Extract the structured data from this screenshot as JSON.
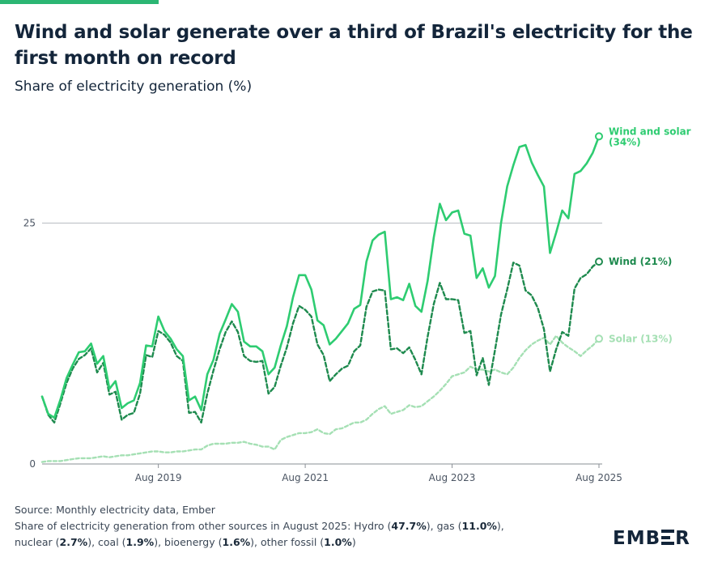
{
  "header": {
    "title": "Wind and solar generate over a third of Brazil's electricity for the first month on record",
    "subtitle": "Share of electricity generation (%)"
  },
  "colors": {
    "wind_and_solar": "#2ecc71",
    "wind": "#1e8a4e",
    "solar": "#a5e0b4",
    "gridline": "#b8bcc2",
    "axis": "#8a8f96"
  },
  "chart_data": {
    "type": "line",
    "x": [
      "2018-01",
      "2018-02",
      "2018-03",
      "2018-04",
      "2018-05",
      "2018-06",
      "2018-07",
      "2018-08",
      "2018-09",
      "2018-10",
      "2018-11",
      "2018-12",
      "2019-01",
      "2019-02",
      "2019-03",
      "2019-04",
      "2019-05",
      "2019-06",
      "2019-07",
      "2019-08",
      "2019-09",
      "2019-10",
      "2019-11",
      "2019-12",
      "2020-01",
      "2020-02",
      "2020-03",
      "2020-04",
      "2020-05",
      "2020-06",
      "2020-07",
      "2020-08",
      "2020-09",
      "2020-10",
      "2020-11",
      "2020-12",
      "2021-01",
      "2021-02",
      "2021-03",
      "2021-04",
      "2021-05",
      "2021-06",
      "2021-07",
      "2021-08",
      "2021-09",
      "2021-10",
      "2021-11",
      "2021-12",
      "2022-01",
      "2022-02",
      "2022-03",
      "2022-04",
      "2022-05",
      "2022-06",
      "2022-07",
      "2022-08",
      "2022-09",
      "2022-10",
      "2022-11",
      "2022-12",
      "2023-01",
      "2023-02",
      "2023-03",
      "2023-04",
      "2023-05",
      "2023-06",
      "2023-07",
      "2023-08",
      "2023-09",
      "2023-10",
      "2023-11",
      "2023-12",
      "2024-01",
      "2024-02",
      "2024-03",
      "2024-04",
      "2024-05",
      "2024-06",
      "2024-07",
      "2024-08",
      "2024-09",
      "2024-10",
      "2024-11",
      "2024-12",
      "2025-01",
      "2025-02",
      "2025-03",
      "2025-04",
      "2025-05",
      "2025-06",
      "2025-07",
      "2025-08"
    ],
    "series": [
      {
        "name": "Wind and solar",
        "style": "solid",
        "values": [
          7,
          5.2,
          4.8,
          6.7,
          8.9,
          10.3,
          11.6,
          11.7,
          12.5,
          10.4,
          11.2,
          7.8,
          8.6,
          5.8,
          6.3,
          6.6,
          8.4,
          12.3,
          12.2,
          15.3,
          13.8,
          13,
          11.9,
          11.2,
          6.6,
          7,
          5.6,
          9.3,
          10.8,
          13.5,
          15,
          16.6,
          15.8,
          12.7,
          12.2,
          12.2,
          11.7,
          9.3,
          10,
          12.3,
          14.3,
          17.3,
          19.6,
          19.6,
          18.1,
          14.9,
          14.4,
          12.4,
          13,
          13.8,
          14.6,
          16.1,
          16.5,
          21,
          23.2,
          23.8,
          24.1,
          17.1,
          17.3,
          17,
          18.7,
          16.4,
          15.8,
          19,
          23.5,
          27,
          25.3,
          26.1,
          26.3,
          23.9,
          23.7,
          19.3,
          20.3,
          18.3,
          19.5,
          25,
          28.8,
          31,
          32.9,
          33.1,
          31.3,
          30,
          28.8,
          21.9,
          24,
          26.3,
          25.5,
          30.1,
          30.4,
          31.2,
          32.3,
          34
        ]
      },
      {
        "name": "Wind",
        "style": "dashed",
        "values": [
          7,
          5.1,
          4.3,
          6.3,
          8.4,
          9.9,
          10.9,
          11.3,
          12,
          9.5,
          10.5,
          7.2,
          7.5,
          4.6,
          5.1,
          5.3,
          7.3,
          11.3,
          11.1,
          13.8,
          13.4,
          12.6,
          11.2,
          10.7,
          5.3,
          5.4,
          4.3,
          7.3,
          9.7,
          11.9,
          13.7,
          14.8,
          13.7,
          11.2,
          10.7,
          10.6,
          10.7,
          7.3,
          8,
          10.2,
          12.1,
          14.6,
          16.4,
          16,
          15.3,
          12.4,
          11.3,
          8.6,
          9.3,
          9.9,
          10.2,
          11.7,
          12.3,
          16.3,
          17.9,
          18.1,
          18,
          11.9,
          12,
          11.5,
          12.1,
          10.8,
          9.3,
          13.2,
          16.6,
          18.8,
          17.1,
          17.1,
          17,
          13.6,
          13.8,
          9.2,
          11,
          8.2,
          11.8,
          15.5,
          18.1,
          20.9,
          20.6,
          18,
          17.5,
          16.2,
          14,
          9.6,
          11.9,
          13.7,
          13.3,
          18.2,
          19.3,
          19.7,
          20.5,
          21
        ]
      },
      {
        "name": "Solar",
        "style": "dotted",
        "values": [
          0.2,
          0.3,
          0.3,
          0.3,
          0.4,
          0.5,
          0.6,
          0.6,
          0.6,
          0.7,
          0.8,
          0.7,
          0.8,
          0.9,
          0.9,
          1,
          1.1,
          1.2,
          1.3,
          1.3,
          1.2,
          1.2,
          1.3,
          1.3,
          1.4,
          1.5,
          1.5,
          1.9,
          2.1,
          2.1,
          2.1,
          2.2,
          2.2,
          2.3,
          2.1,
          2,
          1.8,
          1.8,
          1.5,
          2.5,
          2.8,
          3,
          3.2,
          3.2,
          3.3,
          3.6,
          3.2,
          3.1,
          3.6,
          3.7,
          4,
          4.3,
          4.3,
          4.6,
          5.2,
          5.7,
          6,
          5.2,
          5.4,
          5.6,
          6.1,
          5.9,
          6,
          6.5,
          7,
          7.6,
          8.3,
          9.1,
          9.3,
          9.5,
          10.1,
          9.8,
          9.8,
          9.6,
          9.8,
          9.5,
          9.3,
          10,
          11,
          11.8,
          12.4,
          12.8,
          13.1,
          12.4,
          13.3,
          12.6,
          12.1,
          11.7,
          11.2,
          11.8,
          12.3,
          13
        ]
      }
    ],
    "end_labels": [
      "Wind and solar (34%)",
      "Wind (21%)",
      "Solar (13%)"
    ],
    "xticks": [
      "Aug 2019",
      "Aug 2021",
      "Aug 2023",
      "Aug 2025"
    ],
    "xtick_dates": [
      "2019-08",
      "2021-08",
      "2023-08",
      "2025-08"
    ],
    "yticks": [
      0,
      25
    ],
    "ylim": [
      0,
      40
    ],
    "grid": true,
    "xlabel": "",
    "ylabel": "Share of electricity generation (%)",
    "legend": "end-of-line labels"
  },
  "footer": {
    "source": "Source: Monthly electricity data, Ember",
    "other_intro": "Share of electricity generation from other sources in August 2025: Hydro (",
    "hydro": "47.7%",
    "gas_pre": "), gas (",
    "gas": "11.0%",
    "nuclear_pre": "),",
    "nuclear_pre2": "nuclear (",
    "nuclear": "2.7%",
    "coal_pre": "), coal (",
    "coal": "1.9%",
    "bio_pre": "), bioenergy (",
    "bioenergy": "1.6%",
    "fossil_pre": "), other fossil (",
    "other_fossil": "1.0%",
    "close": ")"
  },
  "logo": {
    "text_before": "EMB",
    "text_after": "R",
    "alt_letter": "E"
  }
}
